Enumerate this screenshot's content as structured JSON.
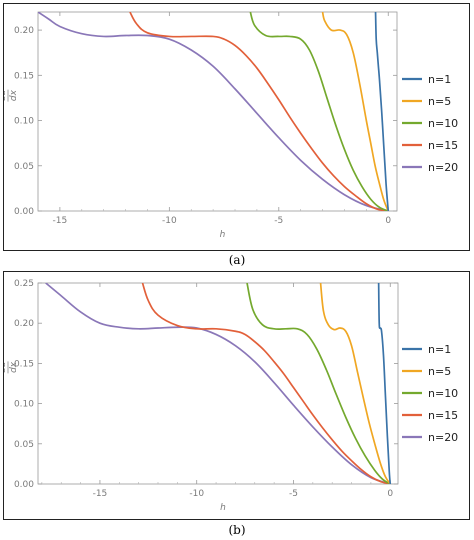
{
  "figure": {
    "captions": [
      "(a)",
      "(b)"
    ]
  },
  "chart_data": [
    {
      "type": "line",
      "panel": "a",
      "xlabel": "h",
      "ylabel_num": "du",
      "ylabel_den": "dx",
      "xlim": [
        -16,
        0.4
      ],
      "ylim": [
        0,
        0.22
      ],
      "xticks": [
        -15,
        -10,
        -5,
        0
      ],
      "yticks": [
        0.0,
        0.05,
        0.1,
        0.15,
        0.2
      ],
      "ytick_labels": [
        "0.00",
        "0.05",
        "0.10",
        "0.15",
        "0.20"
      ],
      "legend_position": "right",
      "series": [
        {
          "name": "n=1",
          "color": "#3a73a8",
          "x": [
            -0.58,
            -0.55,
            -0.5,
            -0.45,
            -0.4,
            -0.3,
            -0.2,
            -0.1,
            0
          ],
          "y": [
            0.22,
            0.19,
            0.175,
            0.16,
            0.145,
            0.11,
            0.07,
            0.03,
            0
          ]
        },
        {
          "name": "n=5",
          "color": "#f0a723",
          "x": [
            -3.0,
            -2.9,
            -2.6,
            -2.2,
            -1.9,
            -1.6,
            -1.3,
            -1.0,
            -0.8,
            -0.6,
            -0.4,
            -0.2,
            0
          ],
          "y": [
            0.22,
            0.21,
            0.2,
            0.2,
            0.195,
            0.175,
            0.14,
            0.1,
            0.075,
            0.05,
            0.03,
            0.012,
            0
          ]
        },
        {
          "name": "n=10",
          "color": "#74a92e",
          "x": [
            -6.3,
            -6.1,
            -5.6,
            -5.0,
            -4.5,
            -4.0,
            -3.6,
            -3.2,
            -2.8,
            -2.4,
            -2.0,
            -1.6,
            -1.2,
            -0.8,
            -0.4,
            0
          ],
          "y": [
            0.22,
            0.205,
            0.194,
            0.193,
            0.193,
            0.19,
            0.178,
            0.155,
            0.125,
            0.095,
            0.068,
            0.045,
            0.027,
            0.013,
            0.004,
            0
          ]
        },
        {
          "name": "n=15",
          "color": "#e2603a",
          "x": [
            -11.8,
            -11.5,
            -11.0,
            -10.0,
            -9.0,
            -8.0,
            -7.5,
            -7.0,
            -6.5,
            -6.0,
            -5.5,
            -5.0,
            -4.5,
            -4.0,
            -3.5,
            -3.0,
            -2.5,
            -2.0,
            -1.5,
            -1.0,
            -0.5,
            0
          ],
          "y": [
            0.22,
            0.207,
            0.197,
            0.193,
            0.193,
            0.193,
            0.19,
            0.183,
            0.172,
            0.158,
            0.141,
            0.123,
            0.104,
            0.086,
            0.069,
            0.053,
            0.039,
            0.027,
            0.017,
            0.008,
            0.002,
            0
          ]
        },
        {
          "name": "n=20",
          "color": "#8a77b8",
          "x": [
            -16,
            -15.5,
            -15.0,
            -14.0,
            -13.0,
            -12.0,
            -11.0,
            -10.0,
            -9.0,
            -8.0,
            -7.0,
            -6.0,
            -5.0,
            -4.0,
            -3.0,
            -2.0,
            -1.0,
            0
          ],
          "y": [
            0.22,
            0.212,
            0.204,
            0.196,
            0.193,
            0.194,
            0.194,
            0.19,
            0.178,
            0.16,
            0.135,
            0.108,
            0.081,
            0.056,
            0.035,
            0.018,
            0.006,
            0
          ]
        }
      ]
    },
    {
      "type": "line",
      "panel": "b",
      "xlabel": "h",
      "ylabel_num": "du",
      "ylabel_den": "dx",
      "xlim": [
        -18.2,
        0.4
      ],
      "ylim": [
        0,
        0.25
      ],
      "xticks": [
        -15,
        -10,
        -5,
        0
      ],
      "yticks": [
        0.0,
        0.05,
        0.1,
        0.15,
        0.2,
        0.25
      ],
      "ytick_labels": [
        "0.00",
        "0.05",
        "0.10",
        "0.15",
        "0.20",
        "0.25"
      ],
      "legend_position": "right",
      "series": [
        {
          "name": "n=1",
          "color": "#3a73a8",
          "x": [
            -0.6,
            -0.57,
            -0.52,
            -0.45,
            -0.35,
            -0.25,
            -0.15,
            -0.05,
            0
          ],
          "y": [
            0.25,
            0.2,
            0.194,
            0.19,
            0.16,
            0.11,
            0.06,
            0.015,
            0
          ]
        },
        {
          "name": "n=5",
          "color": "#f0a723",
          "x": [
            -3.6,
            -3.45,
            -3.2,
            -2.9,
            -2.6,
            -2.3,
            -2.0,
            -1.7,
            -1.4,
            -1.1,
            -0.8,
            -0.5,
            -0.25,
            0
          ],
          "y": [
            0.25,
            0.215,
            0.198,
            0.192,
            0.194,
            0.19,
            0.172,
            0.14,
            0.108,
            0.077,
            0.05,
            0.025,
            0.009,
            0
          ]
        },
        {
          "name": "n=10",
          "color": "#74a92e",
          "x": [
            -7.4,
            -7.1,
            -6.6,
            -6.0,
            -5.4,
            -4.8,
            -4.3,
            -3.8,
            -3.3,
            -2.8,
            -2.3,
            -1.8,
            -1.3,
            -0.8,
            -0.4,
            0
          ],
          "y": [
            0.25,
            0.217,
            0.198,
            0.193,
            0.193,
            0.193,
            0.186,
            0.168,
            0.142,
            0.112,
            0.083,
            0.057,
            0.035,
            0.017,
            0.006,
            0
          ]
        },
        {
          "name": "n=15",
          "color": "#e2603a",
          "x": [
            -12.8,
            -12.5,
            -12.0,
            -11.0,
            -10.0,
            -9.0,
            -8.0,
            -7.5,
            -7.0,
            -6.5,
            -6.0,
            -5.5,
            -5.0,
            -4.5,
            -4.0,
            -3.5,
            -3.0,
            -2.5,
            -2.0,
            -1.5,
            -1.0,
            -0.5,
            0
          ],
          "y": [
            0.25,
            0.228,
            0.21,
            0.197,
            0.193,
            0.193,
            0.19,
            0.186,
            0.177,
            0.166,
            0.152,
            0.137,
            0.12,
            0.103,
            0.086,
            0.07,
            0.055,
            0.041,
            0.029,
            0.018,
            0.009,
            0.003,
            0
          ]
        },
        {
          "name": "n=20",
          "color": "#8a77b8",
          "x": [
            -17.8,
            -17.0,
            -16.0,
            -15.0,
            -14.0,
            -13.0,
            -12.0,
            -11.0,
            -10.0,
            -9.0,
            -8.0,
            -7.0,
            -6.0,
            -5.0,
            -4.0,
            -3.0,
            -2.0,
            -1.0,
            0
          ],
          "y": [
            0.25,
            0.234,
            0.214,
            0.2,
            0.195,
            0.193,
            0.194,
            0.195,
            0.194,
            0.186,
            0.172,
            0.152,
            0.126,
            0.098,
            0.071,
            0.046,
            0.024,
            0.008,
            0
          ]
        }
      ]
    }
  ]
}
